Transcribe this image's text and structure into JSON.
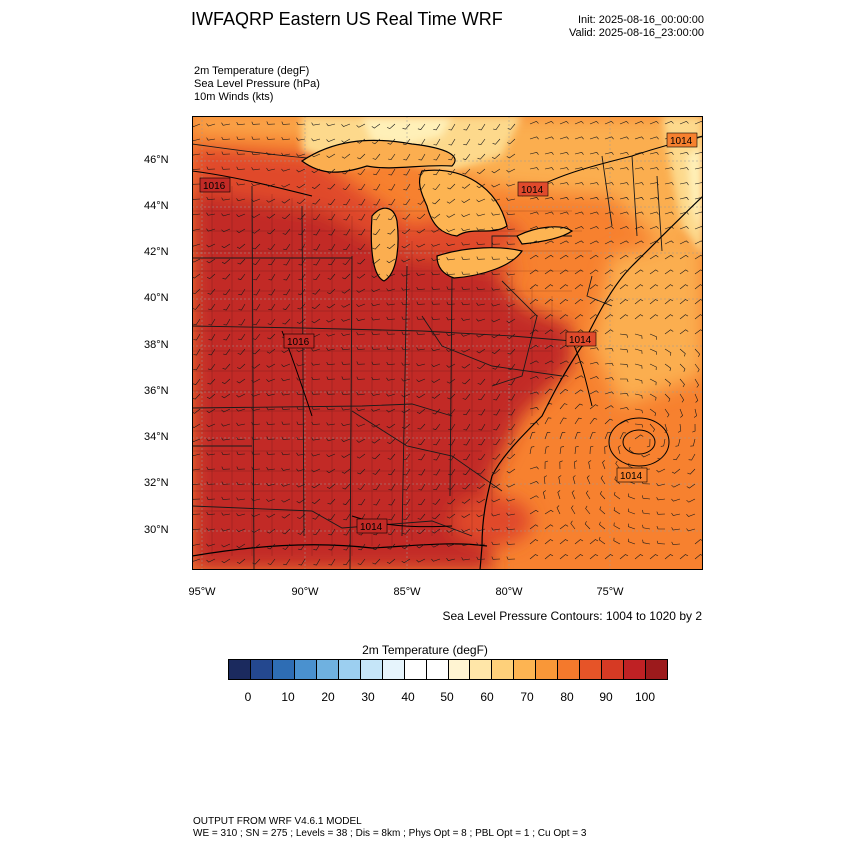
{
  "header": {
    "title": "IWFAQRP Eastern US Real Time WRF",
    "init": "Init: 2025-08-16_00:00:00",
    "valid": "Valid: 2025-08-16_23:00:00"
  },
  "fields": [
    "2m Temperature   (degF)",
    "Sea Level Pressure   (hPa)",
    "10m Winds   (kts)"
  ],
  "map": {
    "lat_labels": [
      "46°N",
      "44°N",
      "42°N",
      "40°N",
      "38°N",
      "36°N",
      "34°N",
      "32°N",
      "30°N"
    ],
    "lon_labels": [
      "95°W",
      "90°W",
      "85°W",
      "80°W",
      "75°W"
    ],
    "pressure_labels": [
      "1014",
      "1014",
      "1016",
      "1016",
      "1014",
      "1014",
      "1014"
    ],
    "colors": {
      "hot": "#c22a26",
      "warm": "#e04a2c",
      "orange": "#f7812f",
      "light_orange": "#fbae50",
      "pale": "#fdd98c",
      "cream": "#fff0b8",
      "lines": "#1a1a1a"
    }
  },
  "contours_note": "Sea Level Pressure Contours: 1004 to 1020 by 2",
  "colorbar": {
    "title": "2m Temperature  (degF)",
    "ticks": [
      "0",
      "10",
      "20",
      "30",
      "40",
      "50",
      "60",
      "70",
      "80",
      "90",
      "100"
    ],
    "colors": [
      "#1b2a5e",
      "#24488f",
      "#2e6db4",
      "#4a91cf",
      "#6fb1e0",
      "#9ccff0",
      "#c5e5f8",
      "#e6f4fc",
      "#ffffff",
      "#ffffff",
      "#fff4d2",
      "#ffe6a8",
      "#fed07a",
      "#fdb452",
      "#f99738",
      "#f4792c",
      "#e65428",
      "#d63a24",
      "#bf2124",
      "#9c1a1c"
    ]
  },
  "footer": {
    "line1": "OUTPUT FROM WRF V4.6.1 MODEL",
    "line2": "WE = 310 ; SN = 275 ; Levels = 38 ; Dis = 8km ; Phys Opt = 8 ; PBL Opt = 1 ; Cu Opt = 3"
  }
}
